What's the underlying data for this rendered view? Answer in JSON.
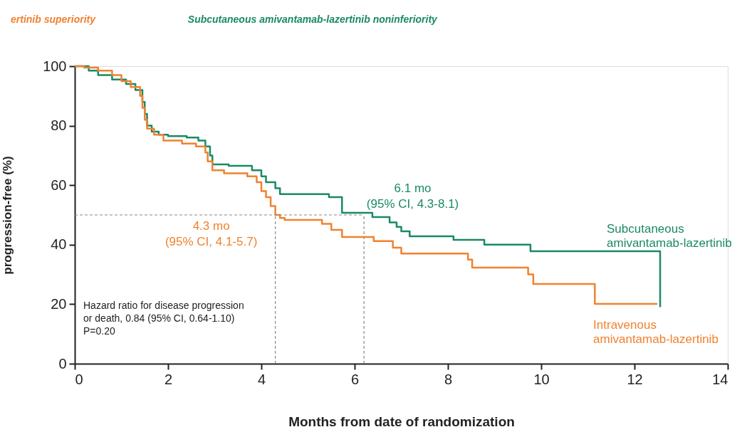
{
  "chart_data": {
    "type": "step",
    "xlabel": "Months from date of randomization",
    "ylabel": "progression-free (%)",
    "xlim": [
      0,
      14
    ],
    "xticks": [
      0,
      2,
      4,
      6,
      8,
      10,
      12,
      14
    ],
    "ylim": [
      0,
      100
    ],
    "yticks": [
      0,
      20,
      40,
      60,
      80,
      100
    ],
    "grid": false,
    "legend": false,
    "series": [
      {
        "name": "Subcutaneous amivantamab-lazertinib",
        "color": "#1a8a63",
        "x": [
          0,
          0.3,
          0.5,
          0.8,
          1.1,
          1.3,
          1.45,
          1.5,
          1.55,
          1.65,
          1.8,
          2.0,
          2.4,
          2.65,
          2.8,
          2.9,
          2.95,
          3.3,
          3.8,
          4.0,
          4.1,
          4.3,
          4.4,
          5.45,
          5.73,
          6.38,
          6.75,
          6.9,
          7.0,
          7.18,
          8.12,
          8.78,
          9.77,
          12.55,
          12.55
        ],
        "values": [
          100,
          98.5,
          97,
          95.5,
          94,
          92,
          88,
          84,
          80,
          78,
          77,
          76.5,
          76,
          75,
          73,
          70,
          67,
          66.5,
          65,
          63,
          61,
          59,
          57,
          56,
          50.7,
          49.3,
          47.5,
          46,
          44.5,
          42.8,
          41.6,
          40,
          37.8,
          37.8,
          19
        ]
      },
      {
        "name": "Intravenous amivantamab-lazertinib",
        "color": "#f0822f",
        "x": [
          0,
          0.2,
          0.5,
          0.8,
          1.0,
          1.2,
          1.4,
          1.45,
          1.5,
          1.55,
          1.7,
          1.9,
          2.3,
          2.6,
          2.8,
          2.85,
          2.95,
          3.2,
          3.7,
          3.9,
          4.0,
          4.1,
          4.2,
          4.3,
          4.4,
          4.5,
          5.3,
          5.5,
          5.73,
          6.41,
          6.82,
          7.0,
          8.43,
          8.52,
          9.72,
          9.83,
          11.15,
          12.49
        ],
        "values": [
          100,
          99.5,
          98.5,
          97,
          95,
          93,
          90,
          86,
          82,
          79,
          77,
          75,
          74,
          73,
          71,
          68,
          65,
          64,
          63,
          61,
          58,
          56,
          53,
          50,
          49,
          48.3,
          47,
          45,
          42.6,
          41.2,
          39,
          37,
          35,
          32.3,
          30,
          26.8,
          20.1,
          20.1
        ]
      }
    ],
    "ref_lines": [
      {
        "axis": "y",
        "value": 50,
        "line_style": "dashed",
        "color": "#888888"
      },
      {
        "axis": "x",
        "value": 4.3,
        "line_style": "dashed",
        "color": "#888888"
      },
      {
        "axis": "x",
        "value": 6.2,
        "line_style": "dashed",
        "color": "#888888"
      }
    ],
    "annotations": [
      {
        "text": "6.1 mo\n(95% CI, 4.3-8.1)",
        "x": 6.1,
        "y": 50
      },
      {
        "text": "4.3 mo\n(95% CI, 4.1-5.7)",
        "x": 4.3,
        "y": 50
      },
      "Hazard ratio for disease progression\nor death, 0.84 (95% CI, 0.64-1.10)\nP=0.20",
      "ertinib superiority",
      "Subcutaneous amivantamab-lazertinib noninferiority"
    ]
  }
}
